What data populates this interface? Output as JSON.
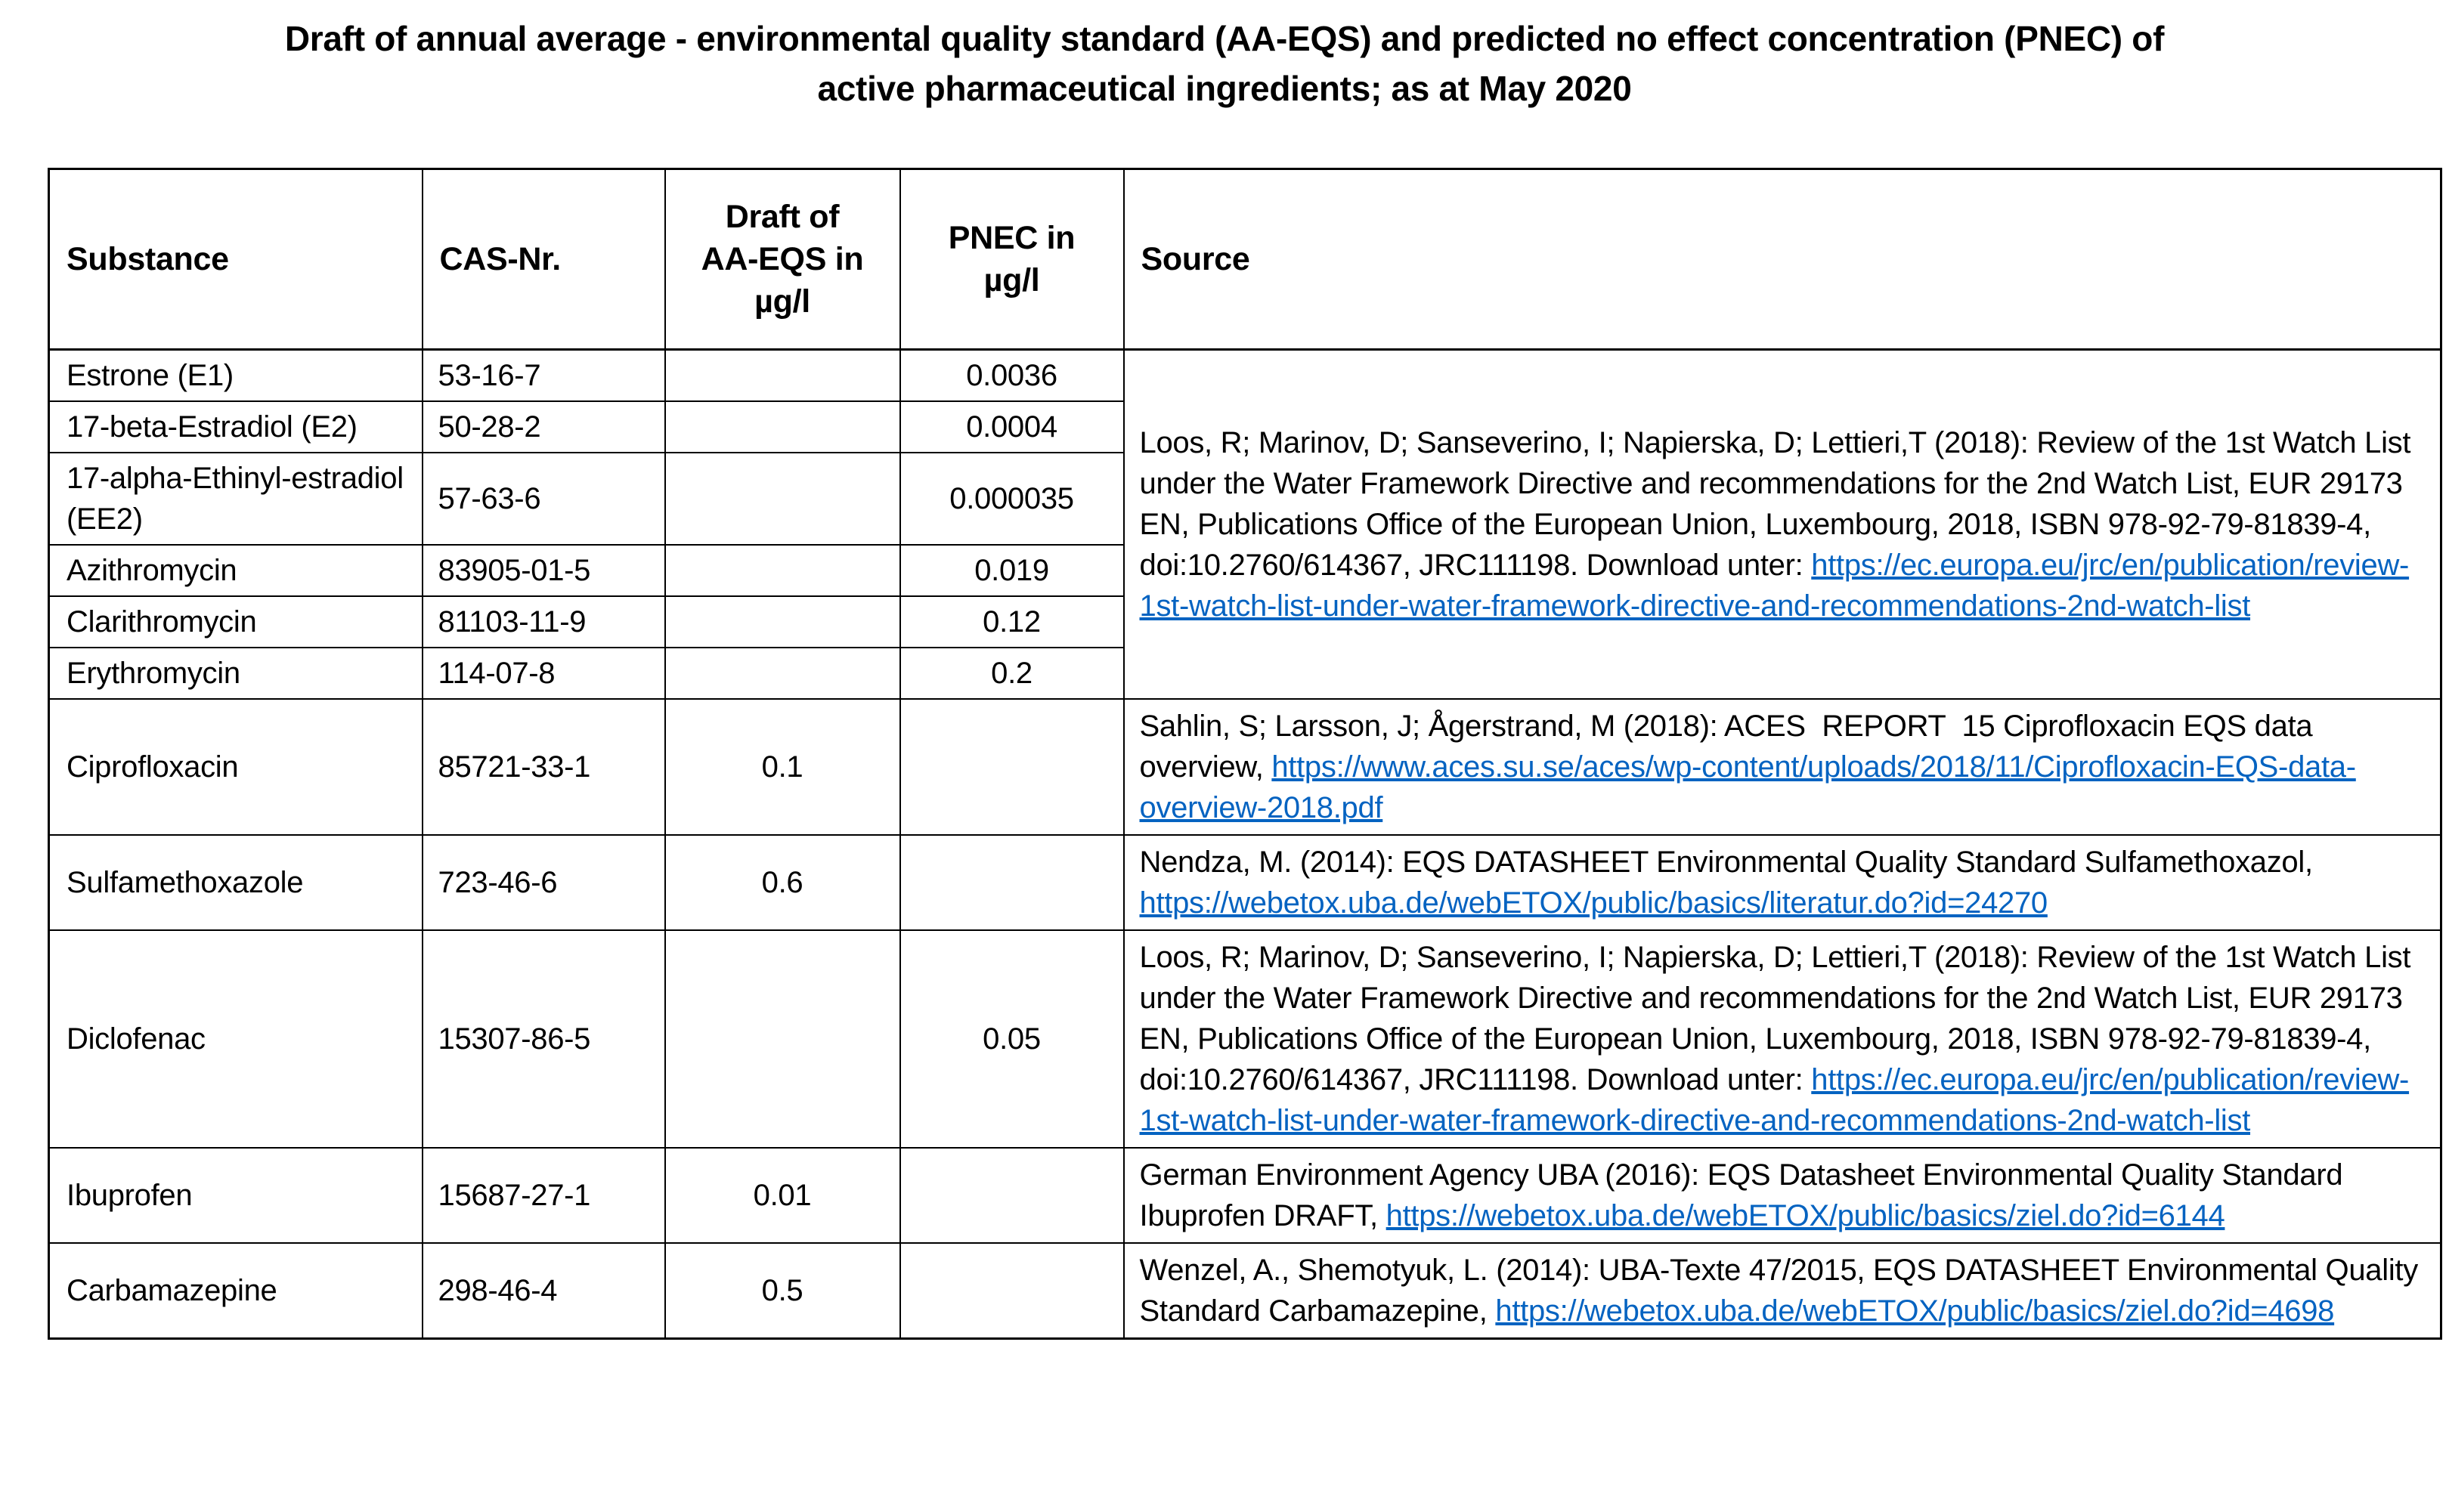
{
  "title": "Draft of annual average - environmental quality standard (AA-EQS) and predicted no effect concentration (PNEC) of\nactive pharmaceutical ingredients; as at May 2020",
  "colors": {
    "link": "#0563C1",
    "text": "#000000",
    "border": "#000000",
    "background": "#FFFFFF"
  },
  "table": {
    "headers": [
      "Substance",
      "CAS-Nr.",
      "Draft of\nAA-EQS in\nµg/l",
      "PNEC in\nµg/l",
      "Source"
    ],
    "rows": [
      {
        "substance": "Estrone (E1)",
        "cas": "53-16-7",
        "aa_eqs": "",
        "pnec": "0.0036",
        "source_ref": "loos_2018",
        "source_span": 6
      },
      {
        "substance": "17-beta-Estradiol (E2)",
        "cas": "50-28-2",
        "aa_eqs": "",
        "pnec": "0.0004",
        "source_ref": null
      },
      {
        "substance": "17-alpha-Ethinyl-estradiol (EE2)",
        "cas": "57-63-6",
        "aa_eqs": "",
        "pnec": "0.000035",
        "source_ref": null
      },
      {
        "substance": "Azithromycin",
        "cas": "83905-01-5",
        "aa_eqs": "",
        "pnec": "0.019",
        "source_ref": null
      },
      {
        "substance": "Clarithromycin",
        "cas": "81103-11-9",
        "aa_eqs": "",
        "pnec": "0.12",
        "source_ref": null
      },
      {
        "substance": "Erythromycin",
        "cas": "114-07-8",
        "aa_eqs": "",
        "pnec": "0.2",
        "source_ref": null
      },
      {
        "substance": "Ciprofloxacin",
        "cas": "85721-33-1",
        "aa_eqs": "0.1",
        "pnec": "",
        "source_ref": "sahlin_2018",
        "source_span": 1
      },
      {
        "substance": "Sulfamethoxazole",
        "cas": "723-46-6",
        "aa_eqs": "0.6",
        "pnec": "",
        "source_ref": "nendza_2014",
        "source_span": 1
      },
      {
        "substance": "Diclofenac",
        "cas": "15307-86-5",
        "aa_eqs": "",
        "pnec": "0.05",
        "source_ref": "loos_2018",
        "source_span": 1
      },
      {
        "substance": "Ibuprofen",
        "cas": "15687-27-1",
        "aa_eqs": "0.01",
        "pnec": "",
        "source_ref": "uba_2016",
        "source_span": 1
      },
      {
        "substance": "Carbamazepine",
        "cas": "298-46-4",
        "aa_eqs": "0.5",
        "pnec": "",
        "source_ref": "wenzel_2014",
        "source_span": 1
      }
    ]
  },
  "sources": {
    "loos_2018": {
      "text": "Loos, R; Marinov, D; Sanseverino, I; Napierska, D; Lettieri,T (2018): Review of the 1st Watch List under the Water Framework Directive and recommendations for the 2nd Watch List, EUR 29173 EN, Publications Office of the European Union, Luxembourg, 2018, ISBN 978-92-79-81839-4, doi:10.2760/614367, JRC111198. Download unter: ",
      "link": "https://ec.europa.eu/jrc/en/publication/review-1st-watch-list-under-water-framework-directive-and-recommendations-2nd-watch-list"
    },
    "sahlin_2018": {
      "text": "Sahlin, S; Larsson, J; Ågerstrand, M (2018): ACES  REPORT  15 Ciprofloxacin EQS data overview, ",
      "link": "https://www.aces.su.se/aces/wp-content/uploads/2018/11/Ciprofloxacin-EQS-data-overview-2018.pdf"
    },
    "nendza_2014": {
      "text": "Nendza, M. (2014): EQS DATASHEET Environmental Quality Standard Sulfamethoxazol, ",
      "link": "https://webetox.uba.de/webETOX/public/basics/literatur.do?id=24270"
    },
    "uba_2016": {
      "text": "German Environment Agency UBA (2016): EQS Datasheet Environmental Quality Standard Ibuprofen DRAFT, ",
      "link": "https://webetox.uba.de/webETOX/public/basics/ziel.do?id=6144"
    },
    "wenzel_2014": {
      "text": "Wenzel, A., Shemotyuk, L. (2014): UBA-Texte 47/2015, EQS DATASHEET Environmental Quality Standard Carbamazepine, ",
      "link": "https://webetox.uba.de/webETOX/public/basics/ziel.do?id=4698"
    }
  }
}
